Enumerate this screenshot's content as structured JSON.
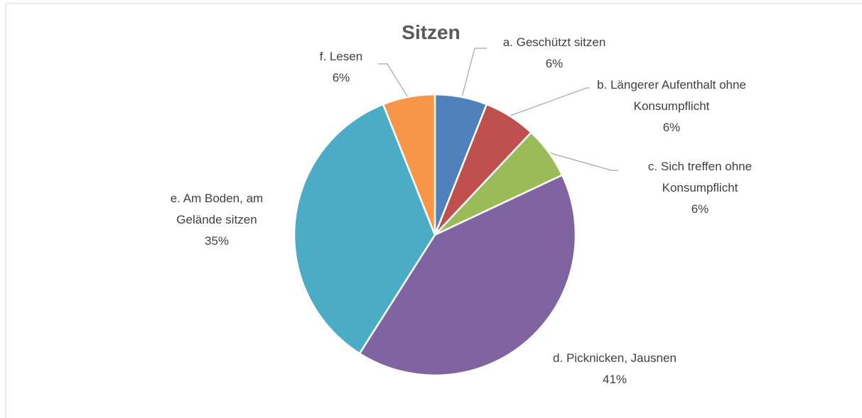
{
  "chart_data": {
    "type": "pie",
    "title": "Sitzen",
    "categories": [
      "a. Geschützt sitzen",
      "b. Längerer Aufenthalt ohne Konsumpflicht",
      "c. Sich treffen ohne Konsumpflicht",
      "d. Picknicken, Jausnen",
      "e. Am Boden, am Gelände sitzen",
      "f. Lesen"
    ],
    "values": [
      6,
      6,
      6,
      41,
      35,
      6
    ],
    "value_labels": [
      "6%",
      "6%",
      "6%",
      "41%",
      "35%",
      "6%"
    ],
    "colors": [
      "#4f81bd",
      "#c0504d",
      "#9bbb59",
      "#8064a2",
      "#4bacc6",
      "#f79646"
    ]
  }
}
